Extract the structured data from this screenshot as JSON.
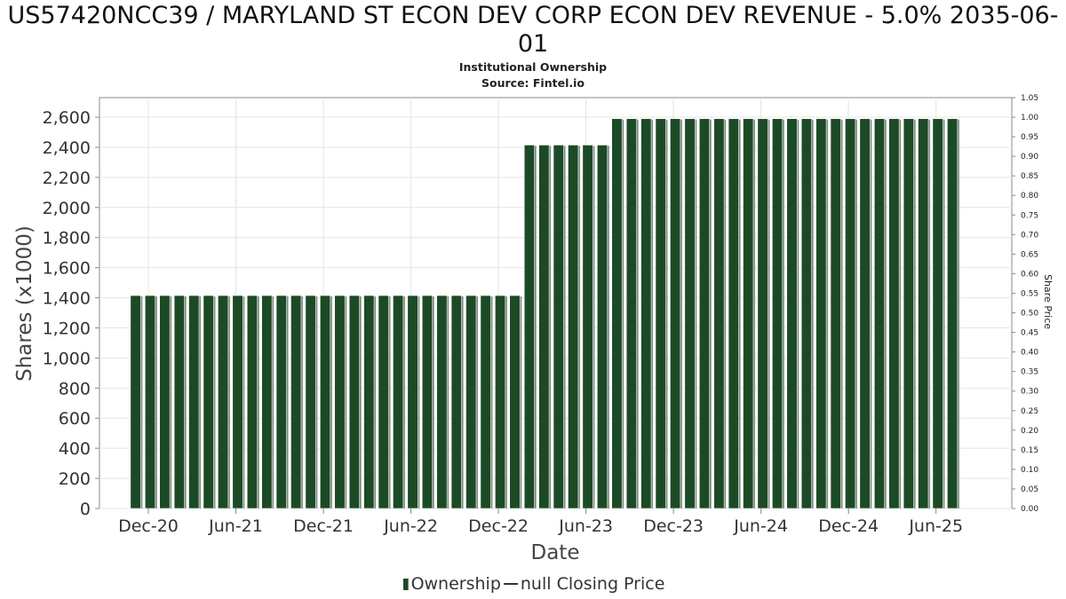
{
  "chart_data": {
    "type": "bar",
    "title": "US57420NCC39 / MARYLAND ST ECON DEV CORP ECON DEV REVENUE - 5.0% 2035-06-01",
    "subtitle": "Institutional Ownership",
    "source": "Source: Fintel.io",
    "xlabel": "Date",
    "ylabel": "Shares (x1000)",
    "y2label": "Share Price",
    "ylim": [
      0,
      2730
    ],
    "y2lim": [
      0,
      1.05
    ],
    "yticks": [
      0,
      200,
      400,
      600,
      800,
      1000,
      1200,
      1400,
      1600,
      1800,
      2000,
      2200,
      2400,
      2600
    ],
    "ytick_labels": [
      "0",
      "200",
      "400",
      "600",
      "800",
      "1,000",
      "1,200",
      "1,400",
      "1,600",
      "1,800",
      "2,000",
      "2,200",
      "2,400",
      "2,600"
    ],
    "y2ticks": [
      "0.00",
      "0.05",
      "0.10",
      "0.15",
      "0.20",
      "0.25",
      "0.30",
      "0.35",
      "0.40",
      "0.45",
      "0.50",
      "0.55",
      "0.60",
      "0.65",
      "0.70",
      "0.75",
      "0.80",
      "0.85",
      "0.90",
      "0.95",
      "1.00",
      "1.05"
    ],
    "xtick_labels": [
      "Dec-20",
      "Jun-21",
      "Dec-21",
      "Jun-22",
      "Dec-22",
      "Jun-23",
      "Dec-23",
      "Jun-24",
      "Dec-24",
      "Jun-25"
    ],
    "grid": true,
    "legend_position": "bottom",
    "series": [
      {
        "name": "Ownership",
        "color": "#1c4a26",
        "period_count": 57,
        "segments": [
          {
            "from": "2020-11",
            "to": "2023-02",
            "bars": 27,
            "value": 1415
          },
          {
            "from": "2023-03",
            "to": "2023-09",
            "bars": 6,
            "value": 2415
          },
          {
            "from": "2023-10",
            "to": "2025-07",
            "bars": 24,
            "value": 2590
          }
        ]
      },
      {
        "name": "null Closing Price",
        "color": "#333333",
        "values": []
      }
    ]
  },
  "legend": {
    "ownership_label": "Ownership",
    "price_label": "null Closing Price"
  }
}
